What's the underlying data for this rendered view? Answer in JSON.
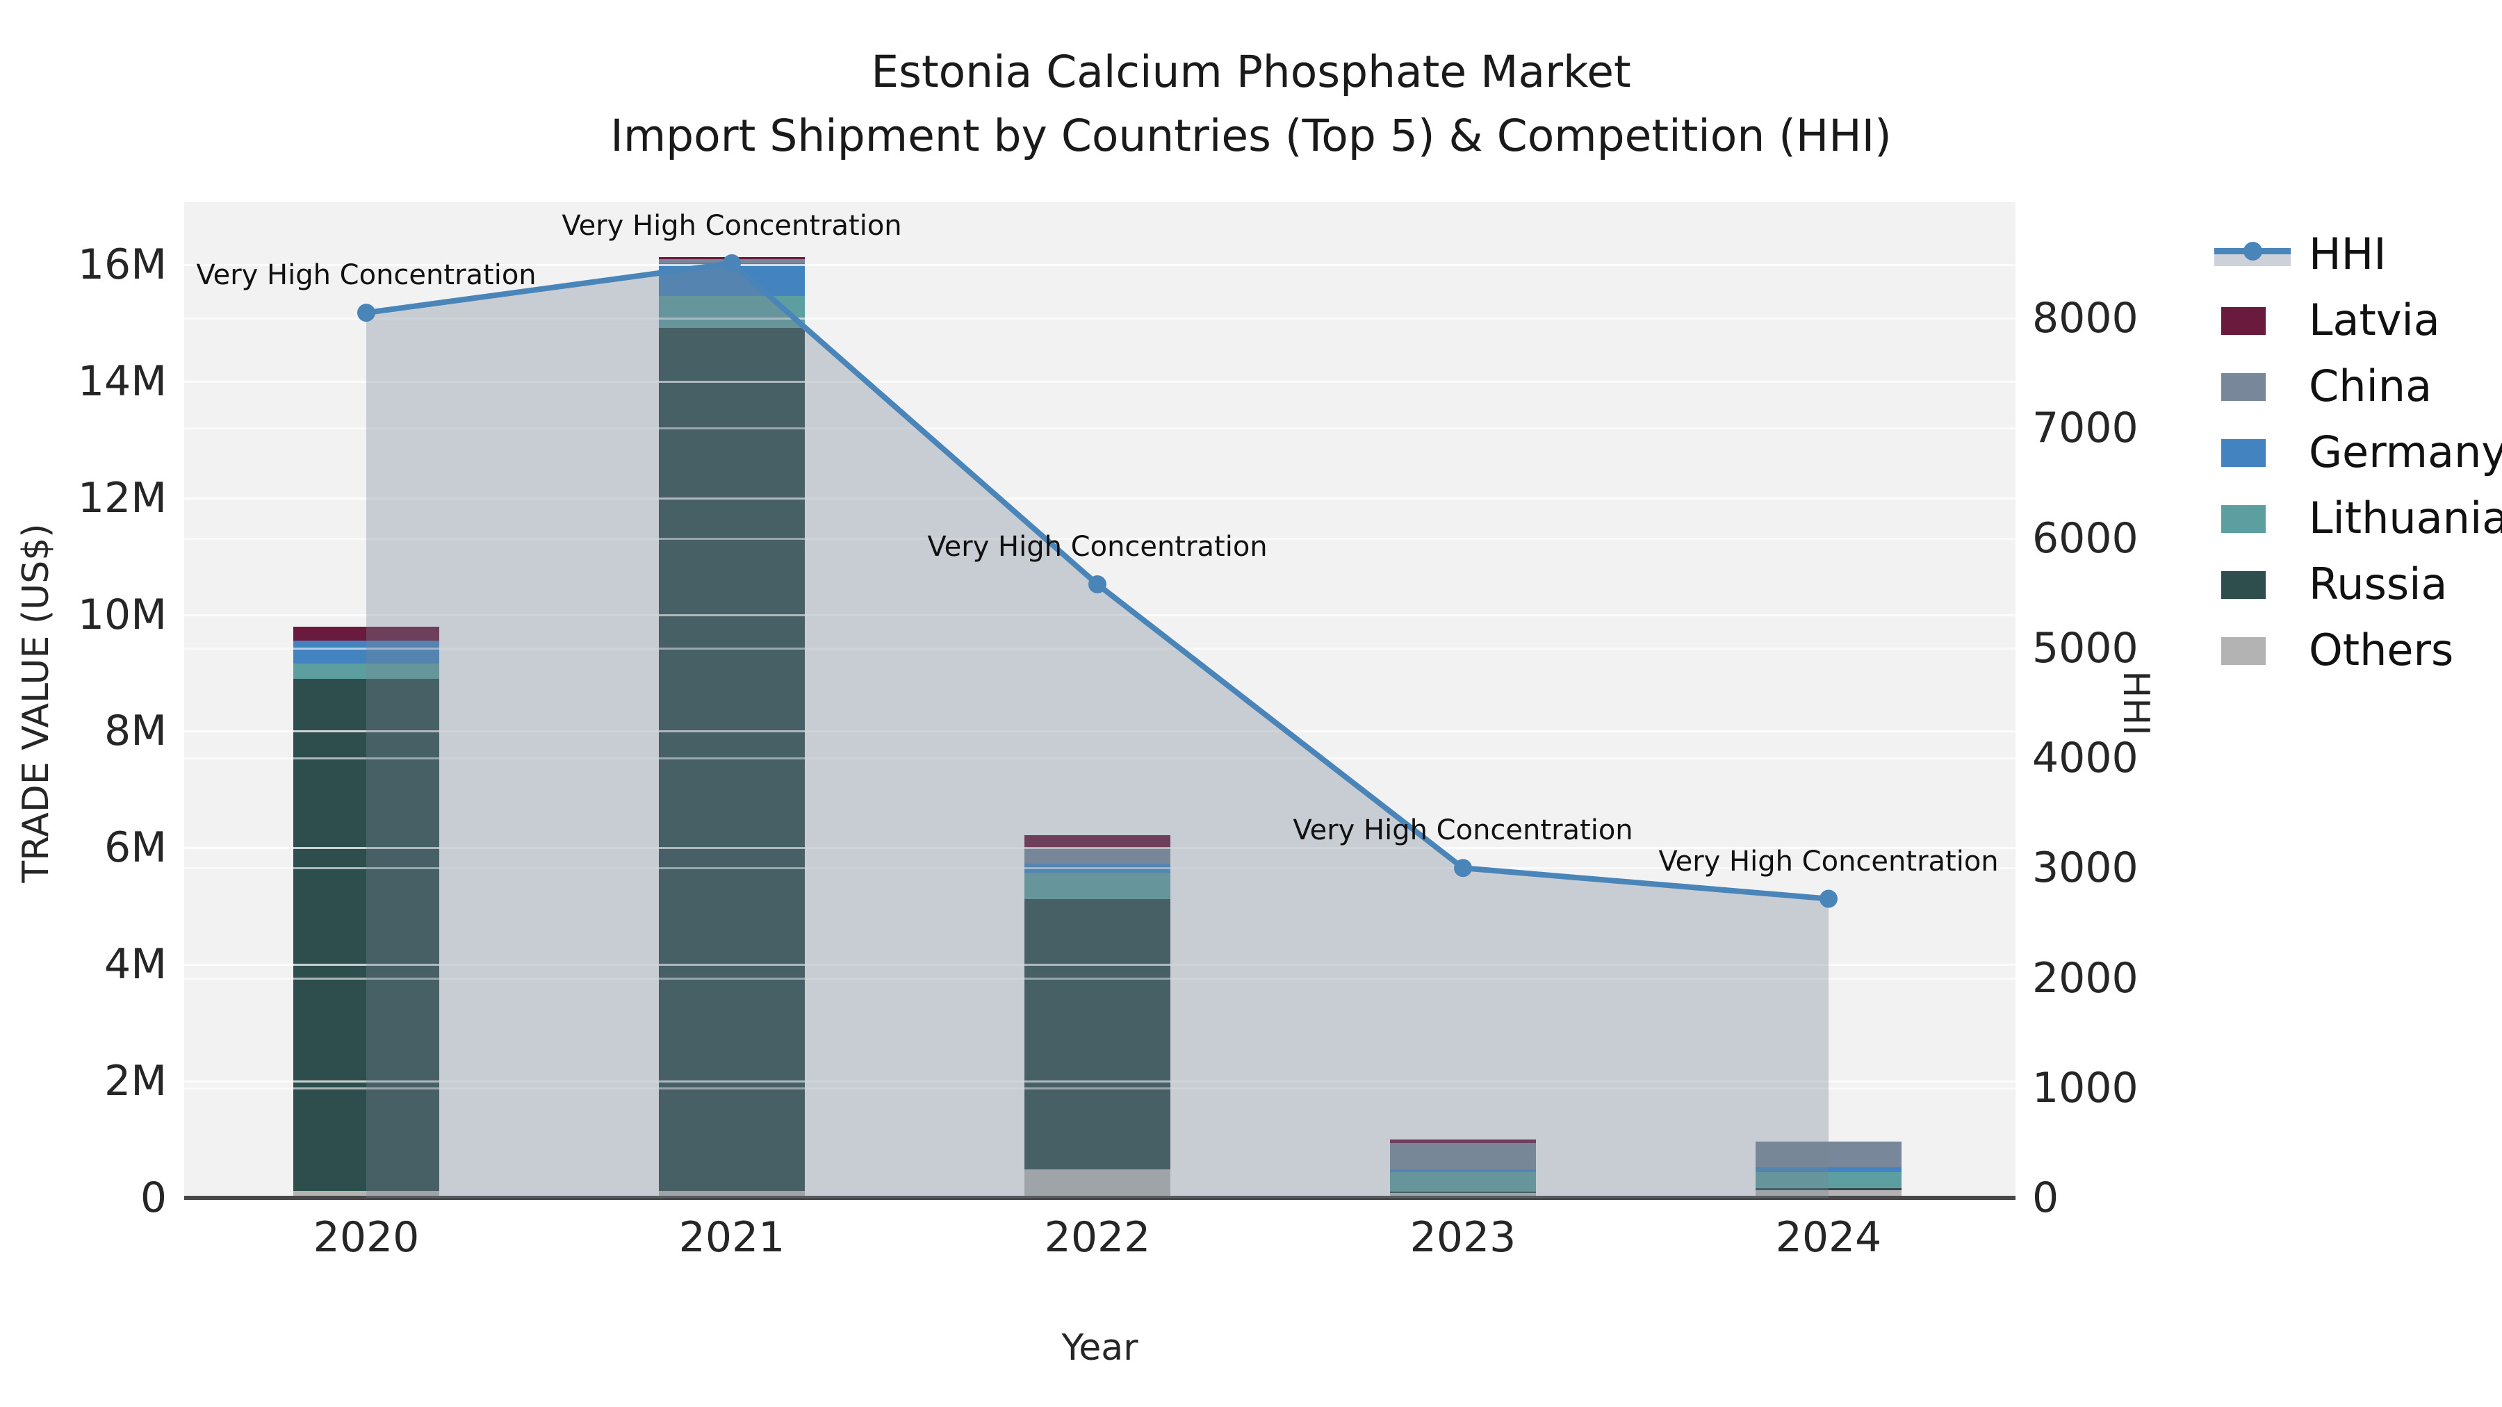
{
  "title": {
    "line1": "Estonia Calcium Phosphate Market",
    "line2": "Import Shipment by Countries (Top 5) & Competition (HHI)"
  },
  "axes": {
    "x": {
      "label": "Year",
      "tick_labels": [
        "2020",
        "2021",
        "2022",
        "2023",
        "2024"
      ]
    },
    "y_left": {
      "label": "TRADE VALUE (US$)",
      "ticks": [
        {
          "value": 0,
          "text": "0"
        },
        {
          "value": 2,
          "text": "2M"
        },
        {
          "value": 4,
          "text": "4M"
        },
        {
          "value": 6,
          "text": "6M"
        },
        {
          "value": 8,
          "text": "8M"
        },
        {
          "value": 10,
          "text": "10M"
        },
        {
          "value": 12,
          "text": "12M"
        },
        {
          "value": 14,
          "text": "14M"
        },
        {
          "value": 16,
          "text": "16M"
        }
      ]
    },
    "y_right": {
      "label": "HHI",
      "ticks": [
        {
          "value": 0,
          "text": "0"
        },
        {
          "value": 1000,
          "text": "1000"
        },
        {
          "value": 2000,
          "text": "2000"
        },
        {
          "value": 3000,
          "text": "3000"
        },
        {
          "value": 4000,
          "text": "4000"
        },
        {
          "value": 5000,
          "text": "5000"
        },
        {
          "value": 6000,
          "text": "6000"
        },
        {
          "value": 7000,
          "text": "7000"
        },
        {
          "value": 8000,
          "text": "8000"
        }
      ]
    }
  },
  "legend": {
    "items": [
      {
        "label": "HHI",
        "handle": "line",
        "color": "#4a85ba"
      },
      {
        "label": "Latvia",
        "handle": "patch",
        "color": "#691a3d"
      },
      {
        "label": "China",
        "handle": "patch",
        "color": "#788799"
      },
      {
        "label": "Germany",
        "handle": "patch",
        "color": "#4383bf"
      },
      {
        "label": "Lithuania",
        "handle": "patch",
        "color": "#5d9fa0"
      },
      {
        "label": "Russia",
        "handle": "patch",
        "color": "#2e4d4d"
      },
      {
        "label": "Others",
        "handle": "patch",
        "color": "#b3b3b3"
      }
    ]
  },
  "chart_data": {
    "type": "bar+line",
    "categories": [
      "2020",
      "2021",
      "2022",
      "2023",
      "2024"
    ],
    "bar_unit": "million US$ (left axis)",
    "stack_order_bottom_to_top": [
      "Others",
      "Russia",
      "Lithuania",
      "Germany",
      "China",
      "Latvia"
    ],
    "series": [
      {
        "name": "Others",
        "type": "bar",
        "axis": "left",
        "color": "#b3b3b3",
        "values": [
          0.12,
          0.12,
          0.49,
          0.08,
          0.13
        ]
      },
      {
        "name": "Russia",
        "type": "bar",
        "axis": "left",
        "color": "#2e4d4d",
        "values": [
          8.78,
          14.8,
          4.63,
          0.03,
          0.04
        ]
      },
      {
        "name": "Lithuania",
        "type": "bar",
        "axis": "left",
        "color": "#5d9fa0",
        "values": [
          0.26,
          0.54,
          0.45,
          0.33,
          0.27
        ]
      },
      {
        "name": "Germany",
        "type": "bar",
        "axis": "left",
        "color": "#4383bf",
        "values": [
          0.39,
          0.56,
          0.16,
          0.05,
          0.09
        ]
      },
      {
        "name": "China",
        "type": "bar",
        "axis": "left",
        "color": "#788799",
        "values": [
          0.0,
          0.08,
          0.26,
          0.45,
          0.44
        ]
      },
      {
        "name": "Latvia",
        "type": "bar",
        "axis": "left",
        "color": "#691a3d",
        "values": [
          0.24,
          0.03,
          0.23,
          0.06,
          0.0
        ]
      },
      {
        "name": "HHI",
        "type": "line",
        "axis": "right",
        "color": "#4a85ba",
        "area_fill": "rgba(121,135,150,0.34)",
        "values": [
          8050,
          8500,
          5580,
          3000,
          2720
        ]
      }
    ],
    "bar_totals": [
      9.79,
      16.13,
      6.22,
      1.0,
      0.97
    ],
    "point_annotations": [
      "Very High Concentration",
      "Very High Concentration",
      "Very High Concentration",
      "Very High Concentration",
      "Very High Concentration"
    ],
    "title": "Estonia Calcium Phosphate Market — Import Shipment by Countries (Top 5) & Competition (HHI)",
    "xlabel": "Year",
    "ylabel_left": "TRADE VALUE (US$)",
    "ylabel_right": "HHI",
    "ylim_left": [
      0,
      17.1
    ],
    "ylim_right": [
      0,
      8950
    ],
    "grid": true,
    "legend_position": "right"
  }
}
